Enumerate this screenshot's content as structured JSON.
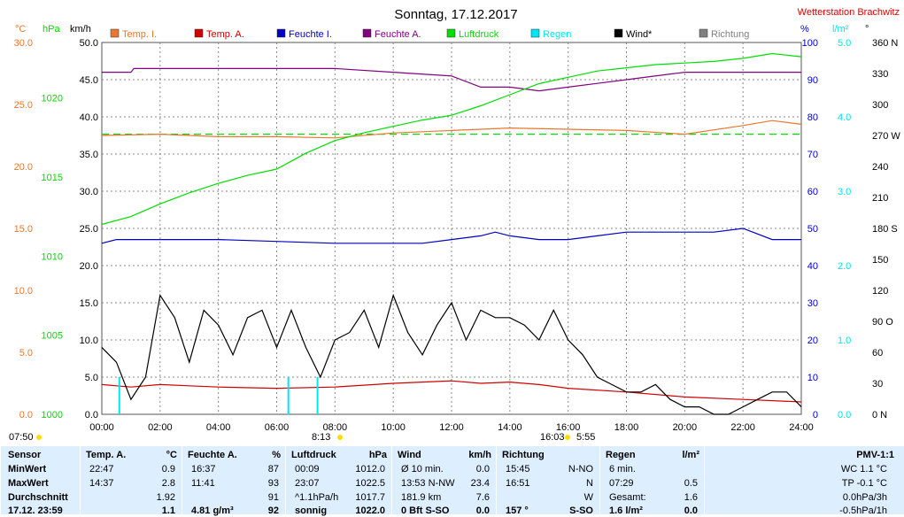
{
  "title": "Sonntag, 17.12.2017",
  "station": "Wetterstation Brachwitz",
  "colors": {
    "temp_i": "#e87830",
    "temp_a": "#d00000",
    "feuchte_i": "#0000c0",
    "feuchte_a": "#800080",
    "luftdruck": "#00dd00",
    "regen": "#00e5f0",
    "wind": "#000000",
    "richtung": "#808080",
    "gridline": "#888888",
    "table_bg": "#ddeeff"
  },
  "chart_data": {
    "type": "line",
    "legend": [
      "Temp. I.",
      "Temp. A.",
      "Feuchte I.",
      "Feuchte A.",
      "Luftdruck",
      "Regen",
      "Wind*",
      "Richtung"
    ],
    "axes": {
      "temp": {
        "unit": "°C",
        "ticks": [
          "30.0",
          "25.0",
          "20.0",
          "15.0",
          "10.0",
          "5.0",
          "0.0"
        ],
        "range": [
          0,
          30
        ]
      },
      "pressure": {
        "unit": "hPa",
        "ticks": [
          "1020",
          "1015",
          "1010",
          "1005",
          "1000"
        ],
        "range": [
          1000,
          1023.5
        ]
      },
      "wind": {
        "unit": "km/h",
        "ticks": [
          "50.0",
          "45.0",
          "40.0",
          "35.0",
          "30.0",
          "25.0",
          "20.0",
          "15.0",
          "10.0",
          "5.0",
          "0.0"
        ],
        "range": [
          0,
          50
        ]
      },
      "humidity": {
        "unit": "%",
        "ticks": [
          "100",
          "90",
          "80",
          "70",
          "60",
          "50",
          "40",
          "30",
          "20",
          "10",
          "0"
        ],
        "range": [
          0,
          100
        ]
      },
      "rain": {
        "unit": "l/m²",
        "ticks": [
          "5.0",
          "4.0",
          "3.0",
          "2.0",
          "1.0",
          "0.0"
        ],
        "range": [
          0,
          5
        ]
      },
      "direction": {
        "unit": "°",
        "ticks": [
          "360 N",
          "330",
          "300",
          "270 W",
          "240",
          "210",
          "180 S",
          "150",
          "120",
          "90 O",
          "60",
          "30",
          "0 N"
        ],
        "range": [
          0,
          360
        ]
      }
    },
    "x_ticks": [
      "00:00",
      "02:00",
      "04:00",
      "06:00",
      "08:00",
      "10:00",
      "12:00",
      "14:00",
      "16:00",
      "18:00",
      "20:00",
      "22:00",
      "24:00"
    ],
    "x_range": [
      0,
      24
    ],
    "series": [
      {
        "name": "Temp. I.",
        "axis": "temp",
        "x": [
          0,
          2,
          4,
          6,
          8,
          10,
          12,
          13,
          14,
          16,
          18,
          20,
          22,
          23,
          24
        ],
        "values": [
          22.5,
          22.6,
          22.4,
          22.4,
          22.3,
          22.7,
          22.9,
          23.0,
          23.1,
          23.0,
          22.9,
          22.6,
          23.3,
          23.7,
          23.4
        ]
      },
      {
        "name": "Temp. A.",
        "axis": "temp",
        "x": [
          0,
          1,
          2,
          3,
          4,
          6,
          8,
          10,
          12,
          13,
          14,
          15,
          16,
          18,
          20,
          22,
          24
        ],
        "values": [
          2.4,
          2.2,
          2.4,
          2.3,
          2.2,
          2.1,
          2.2,
          2.5,
          2.7,
          2.5,
          2.6,
          2.4,
          2.1,
          1.8,
          1.4,
          1.2,
          1.0
        ]
      },
      {
        "name": "Feuchte I.",
        "axis": "humidity",
        "x": [
          0,
          0.5,
          4,
          8,
          10,
          11,
          12,
          13,
          13.5,
          14,
          15,
          16,
          17,
          18,
          20,
          21,
          22,
          23,
          24
        ],
        "values": [
          46,
          47,
          47,
          46,
          46,
          46,
          47,
          48,
          49,
          48,
          47,
          47,
          48,
          49,
          49,
          49,
          50,
          47,
          47
        ]
      },
      {
        "name": "Feuchte A.",
        "axis": "humidity",
        "x": [
          0,
          1,
          1.1,
          2,
          3,
          4,
          6,
          8,
          10,
          12,
          13,
          14,
          15,
          16,
          17,
          18,
          20,
          22,
          24
        ],
        "values": [
          92,
          92,
          93,
          93,
          93,
          93,
          93,
          93,
          92,
          91,
          88,
          88,
          87,
          88,
          89,
          90,
          92,
          92,
          92
        ]
      },
      {
        "name": "Luftdruck",
        "axis": "pressure",
        "x": [
          0,
          1,
          2,
          3,
          4,
          5,
          6,
          7,
          8,
          9,
          10,
          11,
          12,
          13,
          14,
          15,
          16,
          17,
          18,
          19,
          20,
          21,
          22,
          23,
          24
        ],
        "values": [
          1012.0,
          1012.5,
          1013.3,
          1014.0,
          1014.6,
          1015.1,
          1015.5,
          1016.5,
          1017.3,
          1017.8,
          1018.2,
          1018.6,
          1018.9,
          1019.5,
          1020.2,
          1020.9,
          1021.3,
          1021.7,
          1021.9,
          1022.1,
          1022.2,
          1022.3,
          1022.5,
          1022.8,
          1022.6
        ]
      },
      {
        "name": "Wind*",
        "axis": "wind",
        "x": [
          0,
          0.5,
          1,
          1.5,
          2,
          2.5,
          3,
          3.5,
          4,
          4.5,
          5,
          5.5,
          6,
          6.5,
          7,
          7.5,
          8,
          8.5,
          9,
          9.5,
          10,
          10.5,
          11,
          11.5,
          12,
          12.5,
          13,
          13.5,
          14,
          14.5,
          15,
          15.5,
          16,
          16.5,
          17,
          17.5,
          18,
          18.5,
          19,
          19.5,
          20,
          20.5,
          21,
          21.5,
          22,
          22.5,
          23,
          23.5,
          24
        ],
        "values": [
          9,
          7,
          2,
          5,
          16,
          13,
          7,
          14,
          12,
          8,
          13,
          14,
          9,
          14,
          9,
          5,
          10,
          11,
          14,
          9,
          16,
          11,
          8,
          12,
          15,
          10,
          14,
          13,
          13,
          12,
          10,
          14,
          10,
          8,
          5,
          4,
          3,
          3,
          4,
          2,
          1,
          1,
          0,
          0,
          1,
          2,
          3,
          3,
          1
        ]
      },
      {
        "name": "Regen",
        "axis": "rain",
        "x": [
          0.6,
          6.4,
          7.4
        ],
        "values": [
          0.5,
          0.5,
          0.5
        ]
      }
    ]
  },
  "sun": {
    "rise": "07:50",
    "set": "16:03",
    "daylight": "8:13",
    "sunshine": "5:55"
  },
  "table": {
    "sensor": {
      "header": "Sensor",
      "rows": [
        "MinWert",
        "MaxWert",
        "Durchschnitt",
        "17.12. 23:59"
      ]
    },
    "temp_a": {
      "header": "Temp. A.",
      "unit": "°C",
      "rows": [
        [
          "22:47",
          "0.9"
        ],
        [
          "14:37",
          "2.8"
        ],
        [
          "",
          "1.92"
        ],
        [
          "",
          "1.1"
        ]
      ]
    },
    "feuchte_a": {
      "header": "Feuchte A.",
      "unit": "%",
      "rows": [
        [
          "16:37",
          "87"
        ],
        [
          "11:41",
          "93"
        ],
        [
          "",
          "91"
        ],
        [
          "4.81 g/m³",
          "92"
        ]
      ]
    },
    "luftdruck": {
      "header": "Luftdruck",
      "unit": "hPa",
      "rows": [
        [
          "00:09",
          "1012.0"
        ],
        [
          "23:07",
          "1022.5"
        ],
        [
          "^1.1hPa/h",
          "1017.7"
        ],
        [
          "sonnig",
          "1022.0"
        ]
      ]
    },
    "wind": {
      "header": "Wind",
      "unit": "km/h",
      "rows": [
        [
          "Ø 10 min.",
          "0.0"
        ],
        [
          "13:53   N-NW",
          "23.4"
        ],
        [
          "181.9 km",
          "7.6"
        ],
        [
          "0 Bft S-SO",
          "0.0"
        ]
      ]
    },
    "richtung": {
      "header": "Richtung",
      "rows": [
        [
          "15:45",
          "N-NO"
        ],
        [
          "16:51",
          "N"
        ],
        [
          "",
          "W"
        ],
        [
          "157 °",
          "S-SO"
        ]
      ]
    },
    "regen": {
      "header": "Regen",
      "unit": "l/m²",
      "rows": [
        [
          "6 min.",
          ""
        ],
        [
          "07:29",
          "0.5"
        ],
        [
          "Gesamt:",
          "1.6"
        ],
        [
          "1.6 l/m²",
          "0.0"
        ]
      ]
    },
    "pmv": {
      "header": "PMV-1:1",
      "rows": [
        "WC 1.1 °C",
        "TP -0.1 °C",
        "0.0hPa/3h",
        "-0.5hPa/1h"
      ]
    }
  }
}
